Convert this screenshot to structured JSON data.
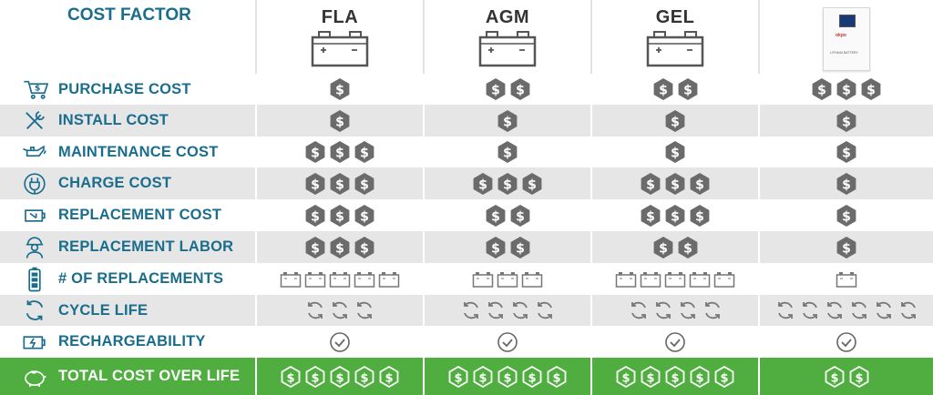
{
  "header": {
    "label": "COST FACTOR",
    "columns": [
      "FLA",
      "AGM",
      "GEL",
      ""
    ]
  },
  "lithium_box": {
    "brand": "okpo",
    "label": "LITHIUM BATTERY"
  },
  "rows": [
    {
      "label": "PURCHASE COST",
      "icon": "cart-dollar-icon",
      "mark": "dollar",
      "counts": [
        1,
        2,
        2,
        3
      ]
    },
    {
      "label": "INSTALL COST",
      "icon": "wrench-screwdriver-icon",
      "mark": "dollar",
      "counts": [
        1,
        1,
        1,
        1
      ]
    },
    {
      "label": "MAINTENANCE COST",
      "icon": "oil-can-icon",
      "mark": "dollar",
      "counts": [
        3,
        1,
        1,
        1
      ]
    },
    {
      "label": "CHARGE COST",
      "icon": "plug-icon",
      "mark": "dollar",
      "counts": [
        3,
        3,
        3,
        1
      ]
    },
    {
      "label": "REPLACEMENT COST",
      "icon": "battery-swap-icon",
      "mark": "dollar",
      "counts": [
        3,
        2,
        3,
        1
      ]
    },
    {
      "label": "REPLACEMENT LABOR",
      "icon": "worker-icon",
      "mark": "dollar",
      "counts": [
        3,
        2,
        2,
        1
      ]
    },
    {
      "label": "# OF REPLACEMENTS",
      "icon": "battery-level-icon",
      "mark": "battery",
      "counts": [
        5,
        3,
        5,
        1
      ]
    },
    {
      "label": "CYCLE LIFE",
      "icon": "cycle-icon",
      "mark": "cycle",
      "counts": [
        3,
        4,
        4,
        6
      ]
    },
    {
      "label": "RECHARGEABILITY",
      "icon": "battery-charge-icon",
      "mark": "check",
      "counts": [
        1,
        1,
        1,
        1
      ]
    },
    {
      "label": "TOTAL COST OVER LIFE",
      "icon": "piggy-bank-icon",
      "mark": "dollar-outline",
      "counts": [
        5,
        5,
        5,
        2
      ]
    }
  ],
  "colors": {
    "label_text": "#1b6d8e",
    "hex_fill": "#6b6b6b",
    "total_bg": "#4fae3f",
    "alt_row_bg": "#e6e6e6"
  }
}
